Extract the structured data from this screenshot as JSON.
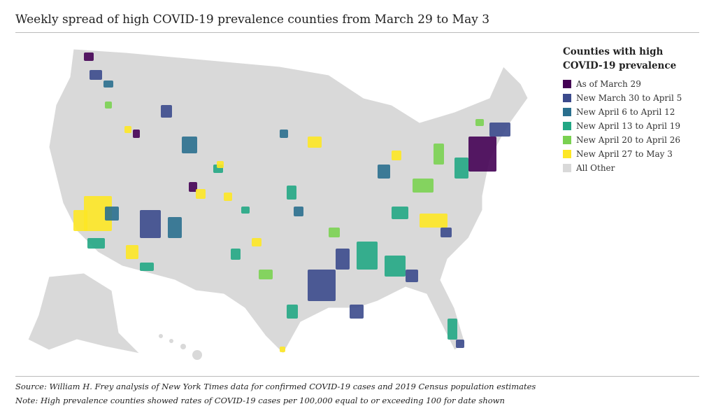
{
  "header": {
    "title": "Weekly spread of high COVID-19 prevalence counties from March 29 to May 3"
  },
  "legend": {
    "title": "Counties with high COVID-19 prevalence",
    "items": [
      {
        "label": "As of March 29",
        "color": "#440154"
      },
      {
        "label": "New March 30 to April 5",
        "color": "#3b4a8c"
      },
      {
        "label": "New April 6 to April 12",
        "color": "#2a6f8e"
      },
      {
        "label": "New April 13 to April 19",
        "color": "#22a784"
      },
      {
        "label": "New April 20 to April 26",
        "color": "#7ad151"
      },
      {
        "label": "New April 27 to May 3",
        "color": "#fde725"
      },
      {
        "label": "All Other",
        "color": "#d9d9d9"
      }
    ]
  },
  "footer": {
    "source": "Source: William H. Frey analysis of New York Times data for confirmed COVID-19 cases and 2019 Census population estimates",
    "note": "Note: High prevalence counties showed rates of COVID-19 cases per 100,000 equal to or exceeding 100 for date shown"
  }
}
